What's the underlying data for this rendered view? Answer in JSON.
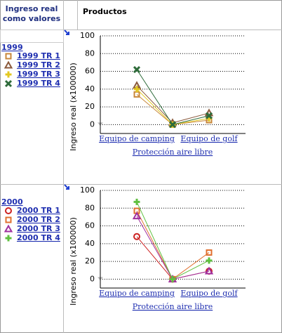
{
  "header": {
    "measure": "Ingreso real como valores",
    "dimension": "Productos"
  },
  "chart_data": [
    {
      "type": "line",
      "legend_title": "1999",
      "y_label": "Ingreso real (x100000)",
      "categories": [
        "Equipo de camping",
        null,
        "Equipo de golf"
      ],
      "x_group_label": "Protección aire libre",
      "ylim": [
        -10,
        100
      ],
      "yticks": [
        0,
        20,
        40,
        60,
        80,
        100
      ],
      "grid": true,
      "series": [
        {
          "name": "1999 TR 1",
          "color": "#c8873a",
          "marker": "square",
          "values": [
            34,
            0,
            5
          ]
        },
        {
          "name": "1999 TR 2",
          "color": "#8b5a3c",
          "marker": "triangle",
          "values": [
            44,
            2,
            13
          ]
        },
        {
          "name": "1999 TR 3",
          "color": "#e3c820",
          "marker": "plus",
          "values": [
            40,
            0,
            7
          ]
        },
        {
          "name": "1999 TR 4",
          "color": "#2e6b3a",
          "marker": "cross",
          "values": [
            62,
            0,
            10
          ]
        }
      ]
    },
    {
      "type": "line",
      "legend_title": "2000",
      "y_label": "Ingreso real (x100000)",
      "categories": [
        "Equipo de camping",
        null,
        "Equipo de golf"
      ],
      "x_group_label": "Protección aire libre",
      "ylim": [
        -10,
        100
      ],
      "yticks": [
        0,
        20,
        40,
        60,
        80,
        100
      ],
      "grid": true,
      "series": [
        {
          "name": "2000 TR 1",
          "color": "#cc2222",
          "marker": "circle",
          "values": [
            48,
            0,
            9
          ]
        },
        {
          "name": "2000 TR 2",
          "color": "#e07030",
          "marker": "square",
          "values": [
            77,
            0,
            30
          ]
        },
        {
          "name": "2000 TR 3",
          "color": "#a030a0",
          "marker": "triangle",
          "values": [
            71,
            0,
            9
          ]
        },
        {
          "name": "2000 TR 4",
          "color": "#60c040",
          "marker": "plus",
          "values": [
            87,
            0,
            21
          ]
        }
      ]
    }
  ]
}
